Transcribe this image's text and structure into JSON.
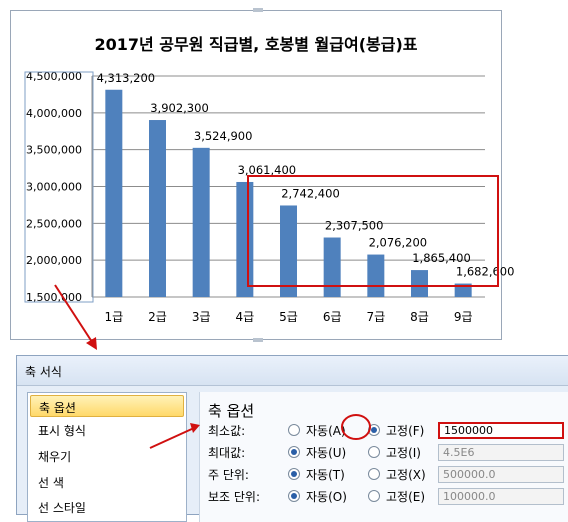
{
  "chart_data": {
    "type": "bar",
    "title": "2017년 공무원 직급별, 호봉별 월급여(봉급)표",
    "categories": [
      "1급",
      "2급",
      "3급",
      "4급",
      "5급",
      "6급",
      "7급",
      "8급",
      "9급"
    ],
    "values": [
      4313200,
      3902300,
      3524900,
      3061400,
      2742400,
      2307500,
      2076200,
      1865400,
      1682600
    ],
    "data_labels": [
      "4,313,200",
      "3,902,300",
      "3,524,900",
      "3,061,400",
      "2,742,400",
      "2,307,500",
      "2,076,200",
      "1,865,400",
      "1,682,600"
    ],
    "y_ticks": [
      "4,500,000",
      "4,000,000",
      "3,500,000",
      "3,000,000",
      "2,500,000",
      "2,000,000",
      "1,500,000"
    ],
    "ylim": [
      1500000,
      4500000
    ],
    "grid": true,
    "bar_color": "#4f81bd",
    "highlight_color": "#d01010"
  },
  "dialog": {
    "title": "축 서식",
    "sidebar": [
      "축 옵션",
      "표시 형식",
      "채우기",
      "선 색",
      "선 스타일"
    ],
    "heading": "축 옵션",
    "rows": [
      {
        "label": "최소값:",
        "auto": "자동(A)",
        "fixed": "고정(F)",
        "value": "1500000",
        "selected": "fixed"
      },
      {
        "label": "최대값:",
        "auto": "자동(U)",
        "fixed": "고정(I)",
        "value": "4.5E6",
        "selected": "auto"
      },
      {
        "label": "주 단위:",
        "auto": "자동(T)",
        "fixed": "고정(X)",
        "value": "500000.0",
        "selected": "auto"
      },
      {
        "label": "보조 단위:",
        "auto": "자동(O)",
        "fixed": "고정(E)",
        "value": "100000.0",
        "selected": "auto"
      }
    ]
  }
}
